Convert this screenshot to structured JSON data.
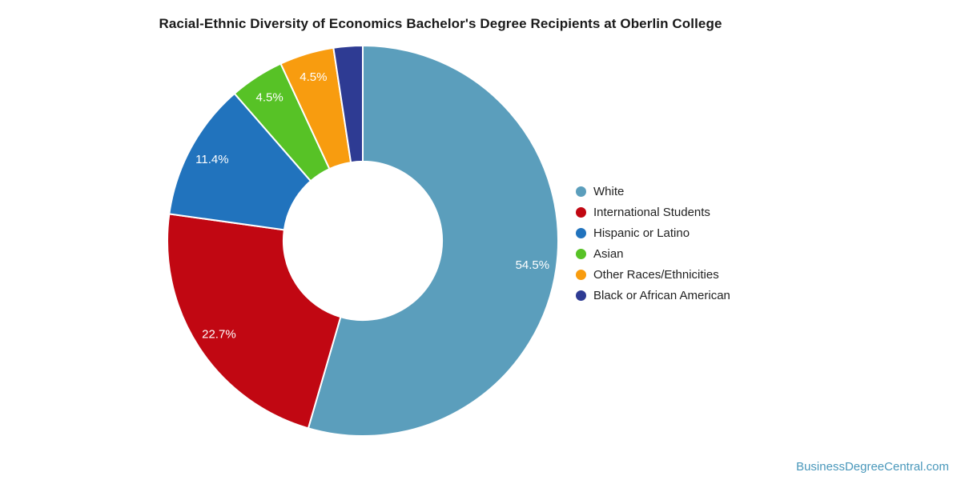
{
  "page": {
    "title": "Racial-Ethnic Diversity of Economics Bachelor's Degree Recipients at Oberlin College"
  },
  "footer": {
    "link_text": "BusinessDegreeCentral.com",
    "link_color": "#4A98BB"
  },
  "chart_data": {
    "type": "pie",
    "subtype": "donut",
    "title": "Racial-Ethnic Diversity of Economics Bachelor's Degree Recipients at Oberlin College",
    "direction": "clockwise",
    "start_angle_deg": 0,
    "inner_radius_ratio": 0.406,
    "legend_position": "right",
    "data_label_color": "#ffffff",
    "slice_border_color": "#ffffff",
    "slices": [
      {
        "label": "White",
        "value": 54.5,
        "data_label": "54.5%",
        "color": "#5B9EBC"
      },
      {
        "label": "International Students",
        "value": 22.7,
        "data_label": "22.7%",
        "color": "#C10712"
      },
      {
        "label": "Hispanic or Latino",
        "value": 11.4,
        "data_label": "11.4%",
        "color": "#2173BD"
      },
      {
        "label": "Asian",
        "value": 4.5,
        "data_label": "4.5%",
        "color": "#57C226"
      },
      {
        "label": "Other Races/Ethnicities",
        "value": 4.5,
        "data_label": "4.5%",
        "color": "#F89C0F"
      },
      {
        "label": "Black or African American",
        "value": 2.4,
        "data_label": "",
        "color": "#2E3B93"
      }
    ]
  }
}
